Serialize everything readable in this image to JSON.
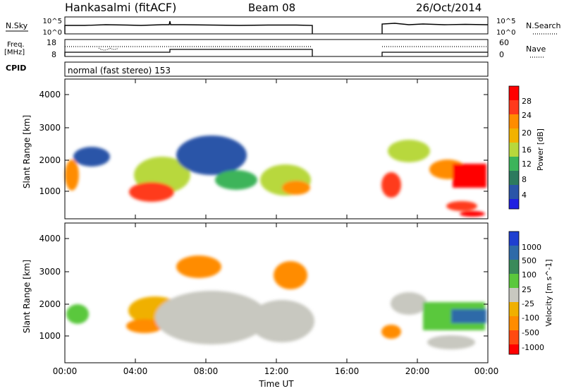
{
  "header": {
    "station": "Hankasalmi (fitACF)",
    "beam": "Beam 08",
    "date": "26/Oct/2014"
  },
  "nsky_panel": {
    "left_label": "N.Sky",
    "left_ticks": [
      "10^5",
      "10^0"
    ],
    "right_label": "N.Search",
    "right_ticks": [
      "10^5",
      "10^0"
    ]
  },
  "freq_panel": {
    "left_label_line1": "Freq.",
    "left_label_line2": "[MHz]",
    "left_ticks": [
      "18",
      "8"
    ],
    "right_label": "Nave",
    "right_ticks": [
      "60",
      "0"
    ]
  },
  "cpid": {
    "label": "CPID",
    "text": "normal (fast stereo) 153"
  },
  "chart_data": [
    {
      "type": "heatmap",
      "name": "power",
      "ylabel": "Slant Range [km]",
      "y_ticks": [
        "4000",
        "3000",
        "2000",
        "1000"
      ],
      "ylim": [
        200,
        4600
      ],
      "colorbar_label": "Power [dB]",
      "colorbar_ticks": [
        "28",
        "24",
        "20",
        "16",
        "12",
        "8",
        "4"
      ],
      "colorbar_colors": [
        "#ff0000",
        "#ff3a1c",
        "#ff8c00",
        "#f2b200",
        "#b8d83c",
        "#3cb45a",
        "#2c7a5e",
        "#2a55a8",
        "#1f1fe0"
      ],
      "data_gaps_ut": [
        [
          14.0,
          18.0
        ]
      ]
    },
    {
      "type": "heatmap",
      "name": "velocity",
      "ylabel": "Slant Range [km]",
      "y_ticks": [
        "4000",
        "3000",
        "2000",
        "1000"
      ],
      "ylim": [
        200,
        4600
      ],
      "colorbar_label": "Velocity [m s^-1]",
      "colorbar_ticks": [
        "1000",
        "500",
        "100",
        "25",
        "-25",
        "-100",
        "-500",
        "-1000"
      ],
      "colorbar_colors": [
        "#1f3fd0",
        "#2e6aa8",
        "#3a8a5a",
        "#5ac83c",
        "#c8c8c0",
        "#f0b000",
        "#ff8c00",
        "#ff4a10",
        "#ff0000"
      ],
      "data_gaps_ut": [
        [
          14.0,
          18.0
        ]
      ]
    }
  ],
  "x_axis": {
    "label": "Time UT",
    "ticks": [
      "00:00",
      "04:00",
      "08:00",
      "12:00",
      "16:00",
      "20:00",
      "00:00"
    ]
  }
}
